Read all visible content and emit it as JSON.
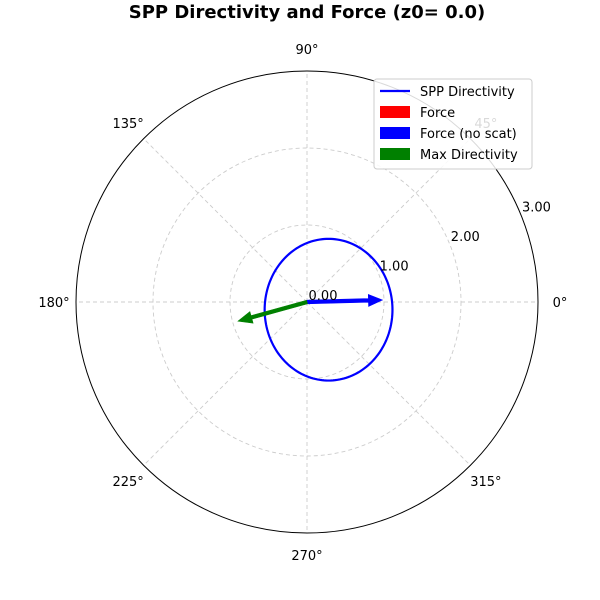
{
  "chart_data": {
    "type": "polar",
    "title": "SPP Directivity and Force (z0= 0.0)",
    "angle_ticks": [
      {
        "deg": 0,
        "label": "0°"
      },
      {
        "deg": 45,
        "label": "45°"
      },
      {
        "deg": 90,
        "label": "90°"
      },
      {
        "deg": 135,
        "label": "135°"
      },
      {
        "deg": 180,
        "label": "180°"
      },
      {
        "deg": 225,
        "label": "225°"
      },
      {
        "deg": 270,
        "label": "270°"
      },
      {
        "deg": 315,
        "label": "315°"
      }
    ],
    "radial_ticks": [
      {
        "value": 0.0,
        "label": "0.00"
      },
      {
        "value": 1.0,
        "label": "1.00"
      },
      {
        "value": 2.0,
        "label": "2.00"
      },
      {
        "value": 3.0,
        "label": "3.00"
      }
    ],
    "rlim": [
      0,
      3
    ],
    "grid": true,
    "legend_position": "top-right",
    "series": [
      {
        "name": "SPP Directivity",
        "kind": "line",
        "color": "#0000ff",
        "shape": "ellipse",
        "x_center": 0.28,
        "y_center": -0.1,
        "semi_x": 0.83,
        "semi_y": 0.92,
        "sampled_points": [
          {
            "theta_deg": 0,
            "r": 1.08
          },
          {
            "theta_deg": 45,
            "r": 0.98
          },
          {
            "theta_deg": 90,
            "r": 0.92
          },
          {
            "theta_deg": 135,
            "r": 0.97
          },
          {
            "theta_deg": 180,
            "r": 0.9
          },
          {
            "theta_deg": 225,
            "r": 0.78
          },
          {
            "theta_deg": 270,
            "r": 0.85
          },
          {
            "theta_deg": 315,
            "r": 1.0
          }
        ]
      },
      {
        "name": "Force",
        "kind": "arrow",
        "color": "#ff0000",
        "theta_deg": 5,
        "r": 0.0
      },
      {
        "name": "Force (no scat)",
        "kind": "arrow",
        "color": "#0000ff",
        "theta_deg": 1.5,
        "r": 0.98
      },
      {
        "name": "Max Directivity",
        "kind": "arrow",
        "color": "#008000",
        "theta_deg": 195.5,
        "r": 0.93
      }
    ]
  }
}
